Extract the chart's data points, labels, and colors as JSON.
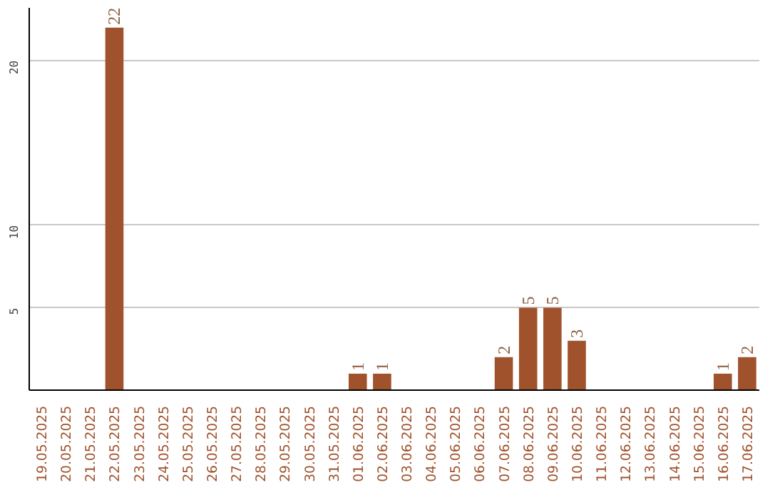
{
  "chart_data": {
    "type": "bar",
    "categories": [
      "19.05.2025",
      "20.05.2025",
      "21.05.2025",
      "22.05.2025",
      "23.05.2025",
      "24.05.2025",
      "25.05.2025",
      "26.05.2025",
      "27.05.2025",
      "28.05.2025",
      "29.05.2025",
      "30.05.2025",
      "31.05.2025",
      "01.06.2025",
      "02.06.2025",
      "03.06.2025",
      "04.06.2025",
      "05.06.2025",
      "06.06.2025",
      "07.06.2025",
      "08.06.2025",
      "09.06.2025",
      "10.06.2025",
      "11.06.2025",
      "12.06.2025",
      "13.06.2025",
      "14.06.2025",
      "15.06.2025",
      "16.06.2025",
      "17.06.2025"
    ],
    "values": [
      0,
      0,
      0,
      22,
      0,
      0,
      0,
      0,
      0,
      0,
      0,
      0,
      0,
      1,
      1,
      0,
      0,
      0,
      0,
      2,
      5,
      5,
      3,
      0,
      0,
      0,
      0,
      0,
      1,
      2
    ],
    "value_labels": [
      null,
      null,
      null,
      "22",
      null,
      null,
      null,
      null,
      null,
      null,
      null,
      null,
      null,
      "1",
      "1",
      null,
      null,
      null,
      null,
      "2",
      "5",
      "5",
      "3",
      null,
      null,
      null,
      null,
      null,
      "1",
      "2"
    ],
    "color": "#a0522d",
    "ylim": [
      0,
      23.2
    ],
    "yticks": [
      5,
      10,
      20
    ],
    "grid": "y"
  }
}
